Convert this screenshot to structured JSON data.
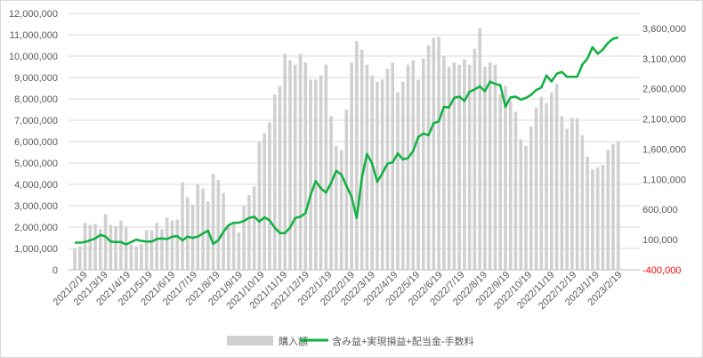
{
  "chart_data": {
    "type": "bar+line",
    "x_dates": [
      "2021/2/5",
      "2021/2/12",
      "2021/2/19",
      "2021/2/26",
      "2021/3/5",
      "2021/3/12",
      "2021/3/19",
      "2021/3/26",
      "2021/4/2",
      "2021/4/9",
      "2021/4/16",
      "2021/4/23",
      "2021/4/30",
      "2021/5/7",
      "2021/5/14",
      "2021/5/21",
      "2021/5/28",
      "2021/6/4",
      "2021/6/11",
      "2021/6/18",
      "2021/6/25",
      "2021/7/2",
      "2021/7/9",
      "2021/7/16",
      "2021/7/23",
      "2021/7/30",
      "2021/8/6",
      "2021/8/13",
      "2021/8/20",
      "2021/8/27",
      "2021/9/3",
      "2021/9/10",
      "2021/9/17",
      "2021/9/24",
      "2021/10/1",
      "2021/10/8",
      "2021/10/15",
      "2021/10/22",
      "2021/10/29",
      "2021/11/5",
      "2021/11/12",
      "2021/11/19",
      "2021/11/26",
      "2021/12/3",
      "2021/12/10",
      "2021/12/17",
      "2021/12/24",
      "2021/12/31",
      "2022/1/7",
      "2022/1/14",
      "2022/1/21",
      "2022/1/28",
      "2022/2/4",
      "2022/2/11",
      "2022/2/18",
      "2022/2/25",
      "2022/3/4",
      "2022/3/11",
      "2022/3/18",
      "2022/3/25",
      "2022/4/1",
      "2022/4/8",
      "2022/4/15",
      "2022/4/22",
      "2022/4/29",
      "2022/5/6",
      "2022/5/13",
      "2022/5/20",
      "2022/5/27",
      "2022/6/3",
      "2022/6/10",
      "2022/6/17",
      "2022/6/24",
      "2022/7/1",
      "2022/7/8",
      "2022/7/15",
      "2022/7/22",
      "2022/7/29",
      "2022/8/5",
      "2022/8/12",
      "2022/8/19",
      "2022/8/26",
      "2022/9/2",
      "2022/9/9",
      "2022/9/16",
      "2022/9/23",
      "2022/9/30",
      "2022/10/7",
      "2022/10/14",
      "2022/10/21",
      "2022/10/28",
      "2022/11/4",
      "2022/11/11",
      "2022/11/18",
      "2022/11/25",
      "2022/12/2",
      "2022/12/9",
      "2022/12/16",
      "2022/12/23",
      "2022/12/30",
      "2023/1/6",
      "2023/1/13",
      "2023/1/20",
      "2023/1/27",
      "2023/2/3",
      "2023/2/10",
      "2023/2/17",
      "2023/2/24",
      "2023/3/3",
      "2023/3/10"
    ],
    "xticks": [
      "2021/2/19",
      "2021/3/19",
      "2021/4/19",
      "2021/5/19",
      "2021/6/19",
      "2021/7/19",
      "2021/8/19",
      "2021/9/19",
      "2021/10/19",
      "2021/11/19",
      "2021/12/19",
      "2022/1/19",
      "2022/2/19",
      "2022/3/19",
      "2022/4/19",
      "2022/5/19",
      "2022/6/19",
      "2022/7/19",
      "2022/8/19",
      "2022/9/19",
      "2022/10/19",
      "2022/11/19",
      "2022/12/19",
      "2023/1/19",
      "2023/2/19"
    ],
    "xlim": [
      "2021/2/5",
      "2023/3/10"
    ],
    "yticks_left": [
      "0",
      "1,000,000",
      "2,000,000",
      "3,000,000",
      "4,000,000",
      "5,000,000",
      "6,000,000",
      "7,000,000",
      "8,000,000",
      "9,000,000",
      "10,000,000",
      "11,000,000",
      "12,000,000"
    ],
    "ylim_left": [
      0,
      12000000
    ],
    "yticks_right": [
      "-400,000",
      "100,000",
      "600,000",
      "1,100,000",
      "1,600,000",
      "2,100,000",
      "2,600,000",
      "3,100,000",
      "3,600,000"
    ],
    "ylim_right": [
      -400000,
      3850000
    ],
    "series": [
      {
        "name": "購入額",
        "type": "bar",
        "axis": "left",
        "color": "#d0d0d0",
        "values": [
          1000000,
          1100000,
          2200000,
          2100000,
          2150000,
          1900000,
          2600000,
          2100000,
          2050000,
          2300000,
          2000000,
          1200000,
          1100000,
          1200000,
          1850000,
          1850000,
          2200000,
          1900000,
          2450000,
          2300000,
          2350000,
          4100000,
          3400000,
          3050000,
          4000000,
          3800000,
          3200000,
          4500000,
          4200000,
          3600000,
          2100000,
          2200000,
          1750000,
          3000000,
          3500000,
          3900000,
          6000000,
          6400000,
          6900000,
          8200000,
          8600000,
          10100000,
          9800000,
          9600000,
          10100000,
          9700000,
          8900000,
          8900000,
          9100000,
          9600000,
          7200000,
          5800000,
          5600000,
          7500000,
          9700000,
          10700000,
          10300000,
          9600000,
          9100000,
          8800000,
          8900000,
          9400000,
          9700000,
          8300000,
          8800000,
          9600000,
          9800000,
          8900000,
          9900000,
          10500000,
          10850000,
          10900000,
          10000000,
          9500000,
          9700000,
          9600000,
          9850000,
          9600000,
          10350000,
          11300000,
          9500000,
          9700000,
          9600000,
          8200000,
          8600000,
          7900000,
          7400000,
          6100000,
          5800000,
          6700000,
          7600000,
          8100000,
          7800000,
          8300000,
          8700000,
          7200000,
          6600000,
          7100000,
          7100000,
          6300000,
          5300000,
          4700000,
          4800000,
          4900000,
          5600000,
          5900000,
          6000000
        ]
      },
      {
        "name": "含み益+実現損益+配当金-手数料",
        "type": "line",
        "axis": "right",
        "color": "#10b040",
        "values": [
          50000,
          50000,
          60000,
          90000,
          120000,
          180000,
          150000,
          70000,
          60000,
          60000,
          20000,
          60000,
          100000,
          80000,
          70000,
          70000,
          110000,
          120000,
          110000,
          150000,
          160000,
          90000,
          150000,
          130000,
          150000,
          200000,
          250000,
          30000,
          90000,
          230000,
          340000,
          380000,
          380000,
          410000,
          460000,
          480000,
          400000,
          470000,
          420000,
          300000,
          210000,
          210000,
          300000,
          460000,
          480000,
          540000,
          840000,
          1070000,
          950000,
          880000,
          1040000,
          1240000,
          1180000,
          990000,
          810000,
          460000,
          1120000,
          1520000,
          1360000,
          1060000,
          1200000,
          1360000,
          1380000,
          1530000,
          1430000,
          1450000,
          1570000,
          1800000,
          1860000,
          1830000,
          2030000,
          2060000,
          2300000,
          2290000,
          2450000,
          2470000,
          2400000,
          2550000,
          2590000,
          2640000,
          2560000,
          2720000,
          2680000,
          2660000,
          2300000,
          2460000,
          2470000,
          2420000,
          2450000,
          2500000,
          2580000,
          2620000,
          2820000,
          2720000,
          2850000,
          2880000,
          2800000,
          2800000,
          2800000,
          3000000,
          3100000,
          3290000,
          3180000,
          3250000,
          3360000,
          3430000,
          3450000
        ]
      }
    ],
    "legend": {
      "position": "bottom",
      "entries": [
        "購入額",
        "含み益+実現損益+配当金-手数料"
      ]
    },
    "grid": true,
    "title": "",
    "xlabel": "",
    "ylabel": ""
  }
}
